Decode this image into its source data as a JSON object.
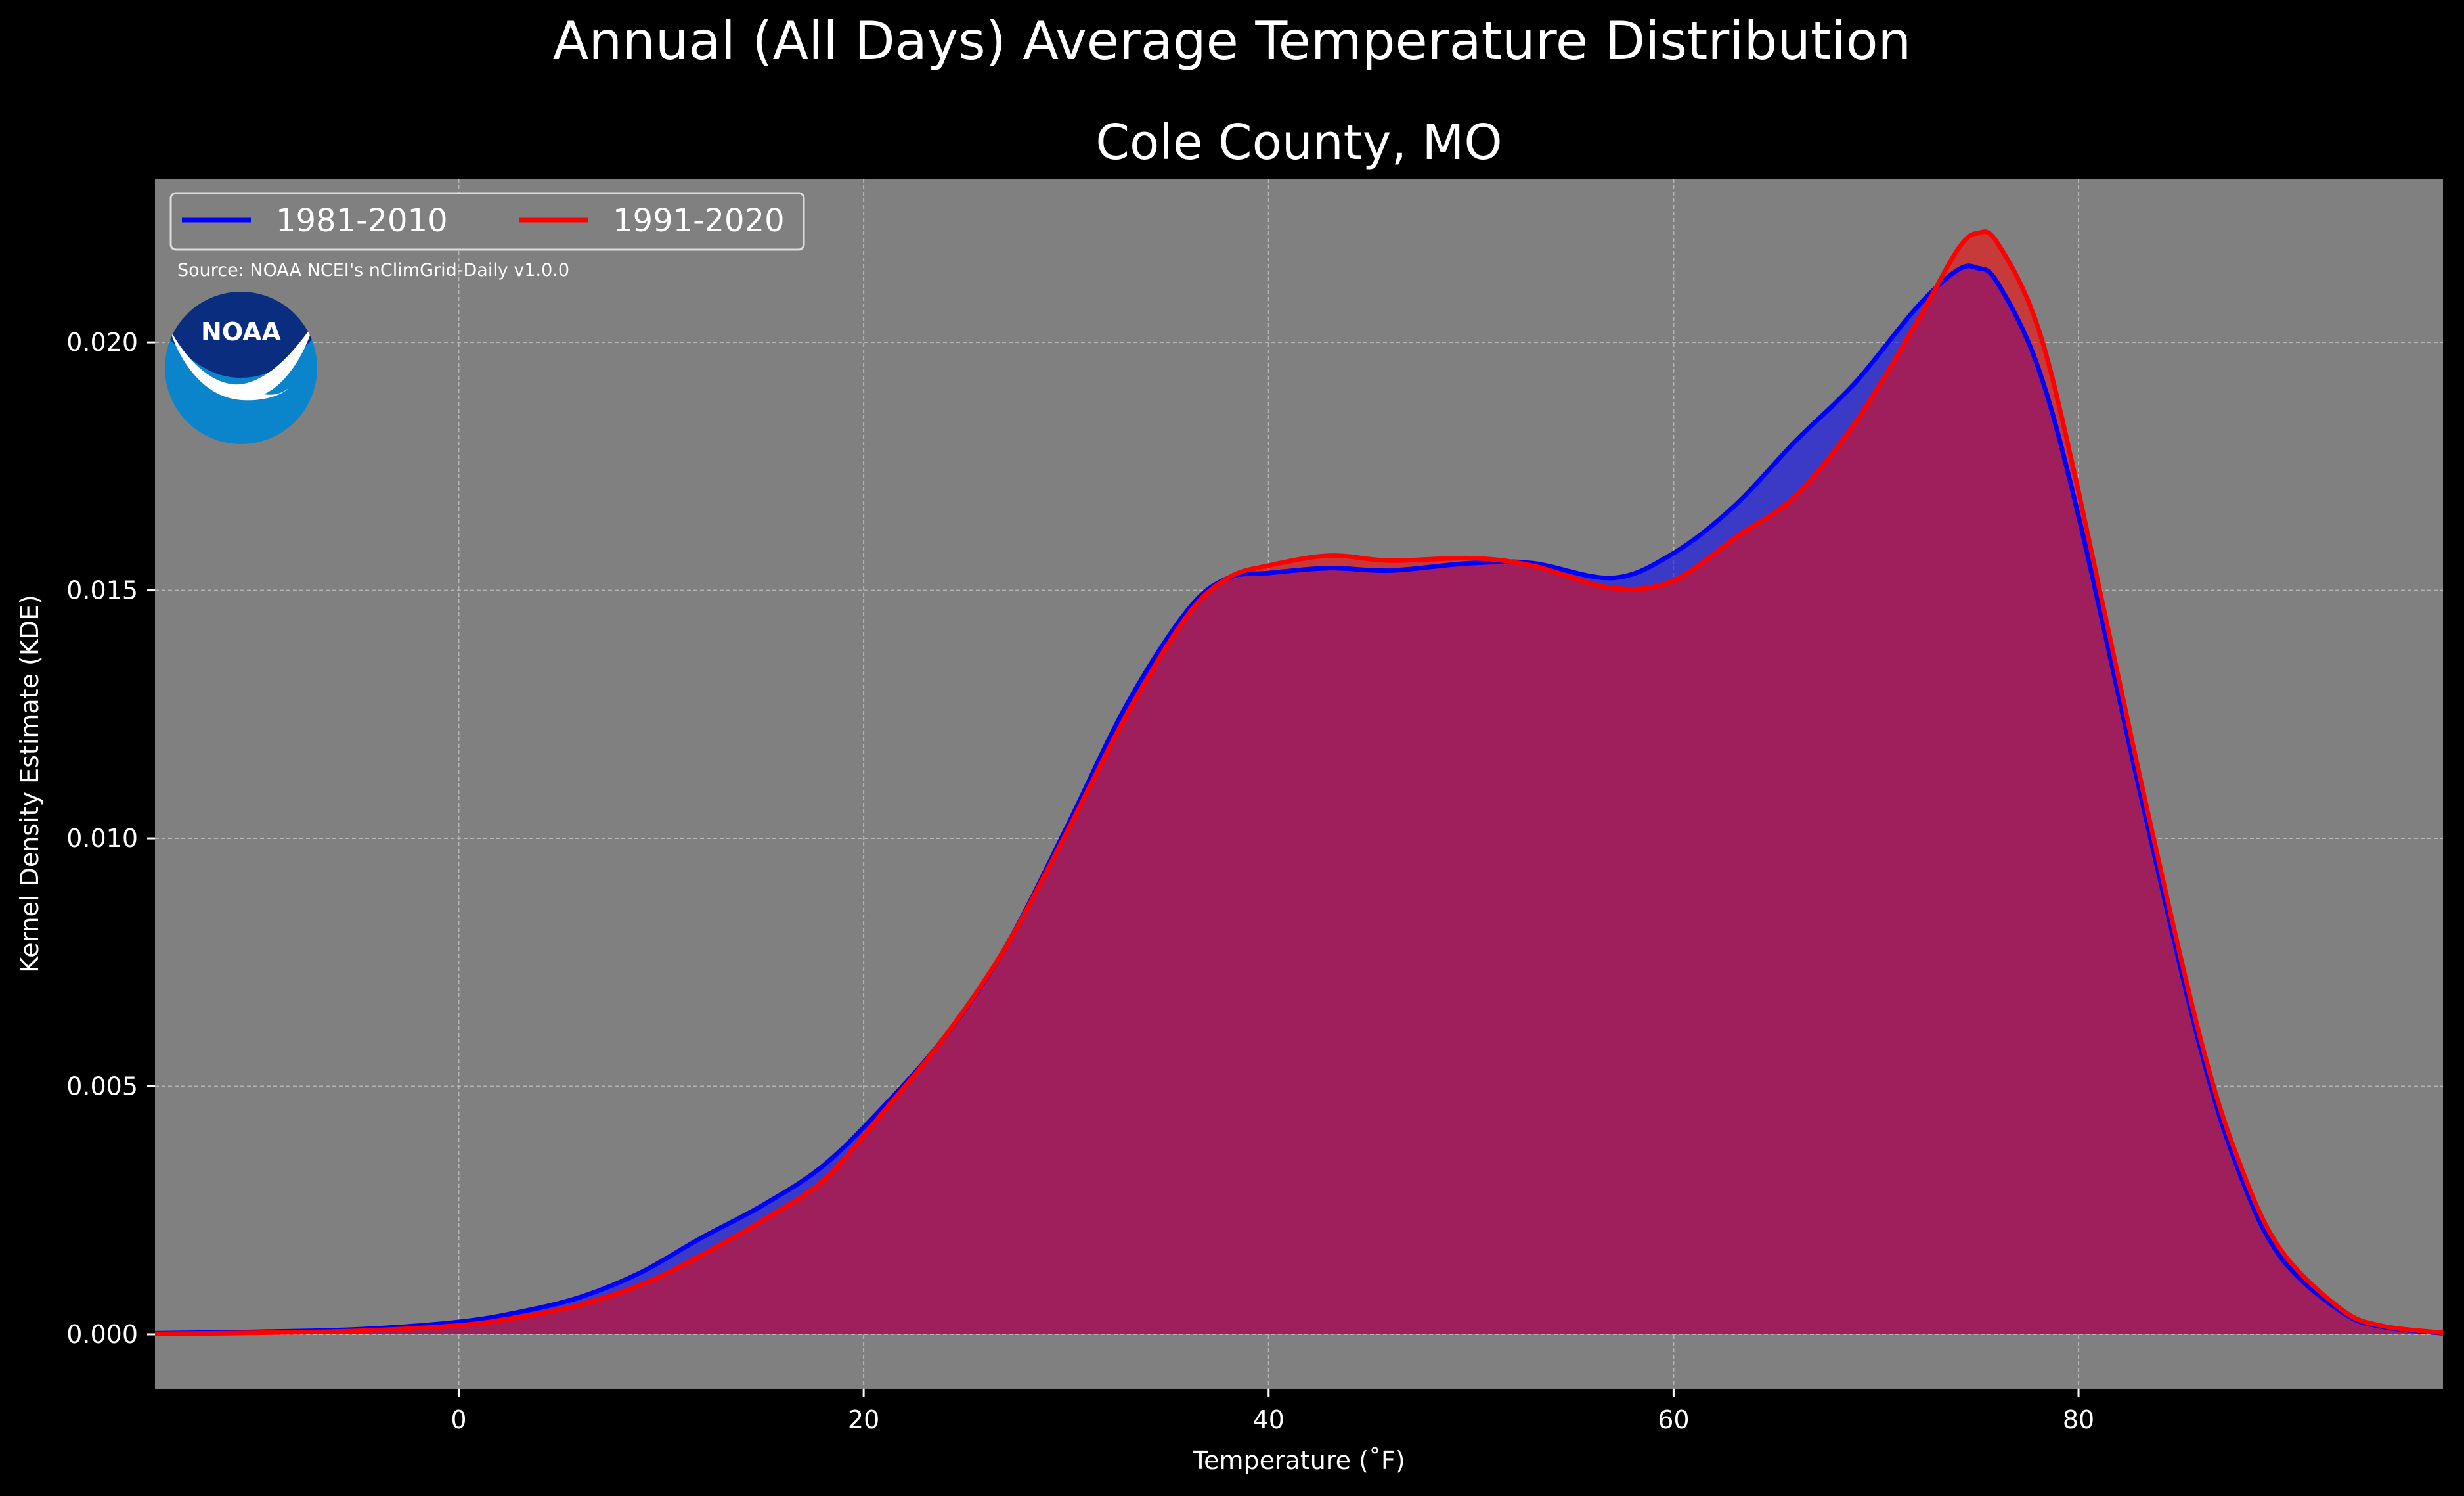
{
  "chart_data": {
    "type": "area",
    "suptitle": "Annual (All Days) Average Temperature Distribution",
    "title": "Cole County, MO",
    "xlabel": "Temperature (˚F)",
    "ylabel": "Kernel Density Estimate (KDE)",
    "xlim": [
      -15,
      98
    ],
    "ylim": [
      -0.0011,
      0.0233
    ],
    "xticks": [
      "0",
      "20",
      "40",
      "60",
      "80"
    ],
    "xtick_values": [
      0,
      20,
      40,
      60,
      80
    ],
    "yticks": [
      "0.000",
      "0.005",
      "0.010",
      "0.015",
      "0.020"
    ],
    "ytick_values": [
      0,
      0.005,
      0.01,
      0.015,
      0.02
    ],
    "grid": true,
    "legend_position": "top-left",
    "annotation": "Source: NOAA NCEI's nClimGrid-Daily v1.0.0",
    "logo_text": "NOAA",
    "colors": {
      "figure_bg": "#000000",
      "axes_bg": "#808080",
      "overlap_fill": "#9f1e5c",
      "series_1": "#0000ff",
      "series_2": "#ff0000"
    },
    "x": [
      -15,
      -10,
      -5,
      0,
      3,
      6,
      9,
      12,
      15,
      18,
      21,
      24,
      27,
      30,
      33,
      36,
      38,
      40,
      43,
      46,
      50,
      53,
      57,
      60,
      63,
      66,
      69,
      72,
      74,
      75,
      76,
      78,
      80,
      83,
      86,
      88,
      90,
      93,
      95,
      98
    ],
    "series": [
      {
        "name": "1981-2010",
        "color": "#0000ff",
        "values": [
          2e-05,
          5e-05,
          0.0001,
          0.00025,
          0.00045,
          0.00075,
          0.00125,
          0.00195,
          0.0026,
          0.0034,
          0.0046,
          0.006,
          0.0078,
          0.0102,
          0.0127,
          0.0146,
          0.01525,
          0.01535,
          0.01545,
          0.0154,
          0.01555,
          0.01555,
          0.01525,
          0.01575,
          0.0167,
          0.018,
          0.0192,
          0.0207,
          0.02145,
          0.0215,
          0.0212,
          0.0195,
          0.0165,
          0.011,
          0.0058,
          0.0032,
          0.00155,
          0.00045,
          0.00015,
          2e-05
        ]
      },
      {
        "name": "1991-2020",
        "color": "#ff0000",
        "values": [
          1e-05,
          3e-05,
          7e-05,
          0.00018,
          0.00035,
          0.0006,
          0.001,
          0.0016,
          0.0023,
          0.0031,
          0.0045,
          0.006,
          0.0078,
          0.0101,
          0.0125,
          0.0145,
          0.01525,
          0.0155,
          0.0157,
          0.0156,
          0.01565,
          0.0155,
          0.01505,
          0.0152,
          0.01605,
          0.0169,
          0.0184,
          0.0204,
          0.02185,
          0.0222,
          0.022,
          0.0203,
          0.017,
          0.0113,
          0.006,
          0.0034,
          0.0017,
          0.0005,
          0.00017,
          3e-05
        ]
      }
    ]
  }
}
